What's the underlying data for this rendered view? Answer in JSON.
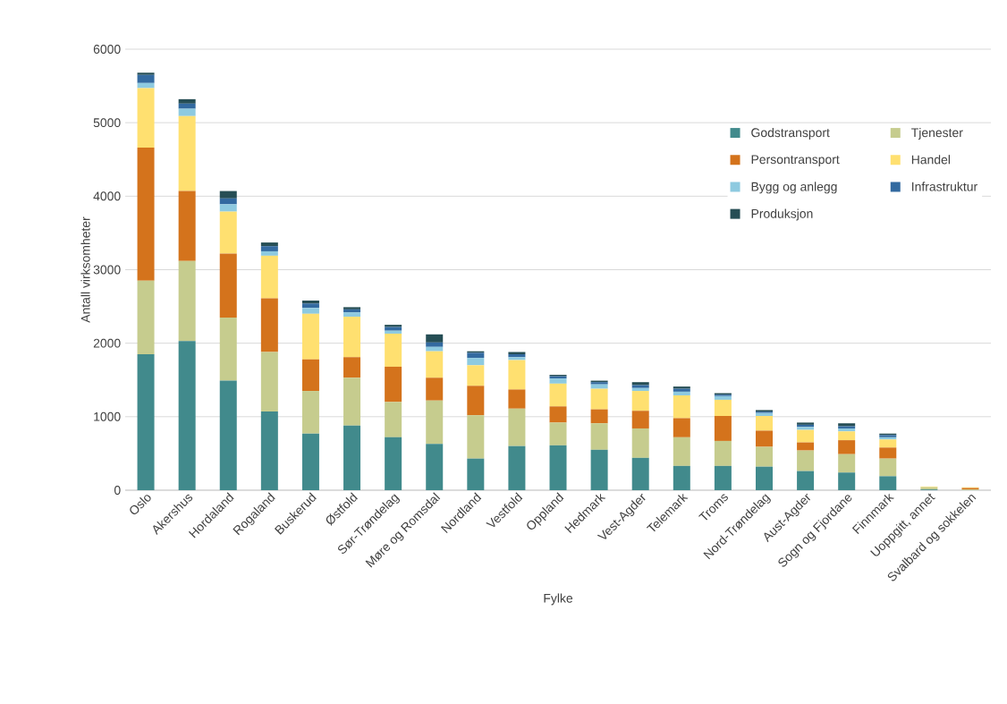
{
  "chart_data": {
    "type": "bar",
    "stacked": true,
    "xlabel": "Fylke",
    "ylabel": "Antall virksomheter",
    "categories": [
      "Oslo",
      "Akershus",
      "Hordaland",
      "Rogaland",
      "Buskerud",
      "Østfold",
      "Sør-Trøndelag",
      "Møre og Romsdal",
      "Nordland",
      "Vestfold",
      "Oppland",
      "Hedmark",
      "Vest-Agder",
      "Telemark",
      "Troms",
      "Nord-Trøndelag",
      "Aust-Agder",
      "Sogn og Fjordane",
      "Finnmark",
      "Uoppgitt, annet",
      "Svalbard og sokkelen"
    ],
    "series": [
      {
        "name": "Godstransport",
        "color": "#418a8c",
        "values": [
          1850,
          2030,
          1490,
          1070,
          770,
          880,
          720,
          630,
          430,
          600,
          610,
          550,
          440,
          330,
          330,
          320,
          260,
          240,
          190,
          10,
          0
        ]
      },
      {
        "name": "Tjenester",
        "color": "#c6cc8e",
        "values": [
          1000,
          1090,
          860,
          810,
          580,
          650,
          480,
          590,
          590,
          510,
          310,
          360,
          400,
          390,
          340,
          270,
          280,
          250,
          240,
          30,
          10
        ]
      },
      {
        "name": "Persontransport",
        "color": "#d4731c",
        "values": [
          1810,
          950,
          870,
          730,
          430,
          280,
          480,
          310,
          400,
          260,
          220,
          190,
          240,
          260,
          340,
          220,
          110,
          190,
          150,
          0,
          20
        ]
      },
      {
        "name": "Handel",
        "color": "#ffe070",
        "values": [
          810,
          1020,
          570,
          580,
          620,
          550,
          450,
          360,
          280,
          400,
          310,
          280,
          270,
          310,
          220,
          200,
          170,
          120,
          110,
          10,
          10
        ]
      },
      {
        "name": "Bygg og anlegg",
        "color": "#8ecae0",
        "values": [
          70,
          100,
          100,
          60,
          80,
          60,
          40,
          60,
          100,
          40,
          70,
          60,
          40,
          50,
          50,
          40,
          40,
          40,
          30,
          0,
          0
        ]
      },
      {
        "name": "Infrastruktur",
        "color": "#336aa0",
        "values": [
          110,
          70,
          80,
          70,
          60,
          40,
          50,
          60,
          70,
          40,
          30,
          30,
          40,
          40,
          20,
          20,
          30,
          30,
          30,
          0,
          0
        ]
      },
      {
        "name": "Produksjon",
        "color": "#264e55",
        "values": [
          30,
          60,
          100,
          50,
          40,
          30,
          30,
          110,
          20,
          30,
          20,
          20,
          40,
          30,
          20,
          20,
          30,
          40,
          20,
          0,
          0
        ]
      }
    ],
    "ylim": [
      0,
      6000
    ],
    "yticks": [
      0,
      1000,
      2000,
      3000,
      4000,
      5000,
      6000
    ],
    "grid": "y",
    "legend": "top right"
  }
}
